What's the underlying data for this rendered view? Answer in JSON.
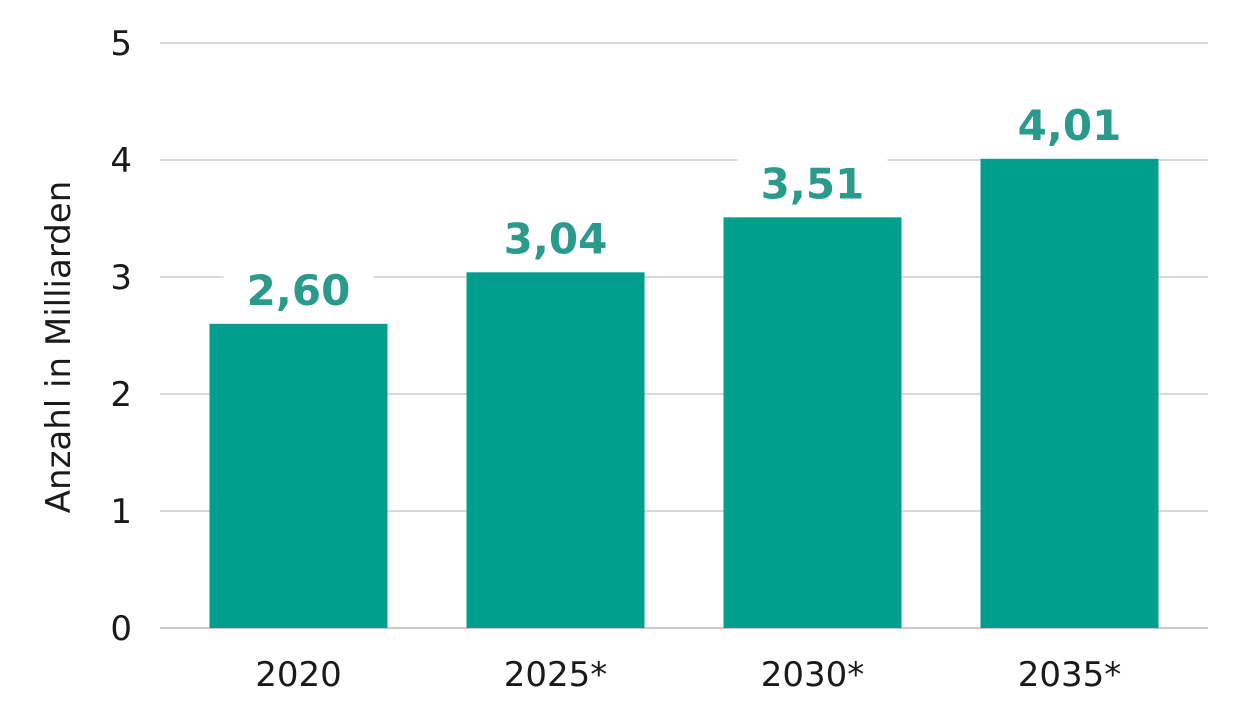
{
  "chart_data": {
    "type": "bar",
    "categories": [
      "2020",
      "2025*",
      "2030*",
      "2035*"
    ],
    "values": [
      2.6,
      3.04,
      3.51,
      4.01
    ],
    "value_labels": [
      "2,60",
      "3,04",
      "3,51",
      "4,01"
    ],
    "title": "",
    "xlabel": "",
    "ylabel": "Anzahl in Milliarden",
    "ylim": [
      0,
      5
    ],
    "yticks": [
      "0",
      "1",
      "2",
      "3",
      "4",
      "5"
    ],
    "grid": true,
    "legend": "none",
    "bar_color": "#009e8c",
    "label_color": "#2a9a8c"
  }
}
